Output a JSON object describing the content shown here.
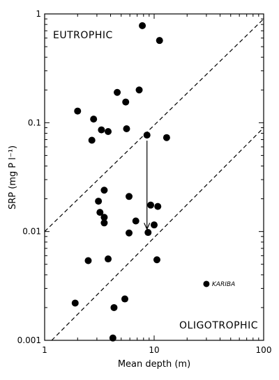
{
  "chart_data": {
    "type": "scatter",
    "title": "",
    "xlabel": "Mean depth (m)",
    "ylabel": "SRP (mg P l⁻¹)",
    "xscale": "log",
    "yscale": "log",
    "xlim": [
      1,
      100
    ],
    "ylim": [
      0.001,
      1
    ],
    "x_ticks": [
      1,
      10,
      100
    ],
    "x_tick_labels": [
      "1",
      "10",
      "100"
    ],
    "y_ticks": [
      0.001,
      0.01,
      0.1,
      1
    ],
    "y_tick_labels": [
      "0.001",
      "0.01",
      "0.1",
      "1"
    ],
    "grid": false,
    "points": [
      {
        "x": 7.8,
        "y": 0.78
      },
      {
        "x": 11.2,
        "y": 0.57
      },
      {
        "x": 4.6,
        "y": 0.19
      },
      {
        "x": 7.3,
        "y": 0.2
      },
      {
        "x": 5.5,
        "y": 0.155
      },
      {
        "x": 2.0,
        "y": 0.128
      },
      {
        "x": 2.8,
        "y": 0.108
      },
      {
        "x": 3.3,
        "y": 0.086
      },
      {
        "x": 3.8,
        "y": 0.083
      },
      {
        "x": 5.6,
        "y": 0.088
      },
      {
        "x": 8.6,
        "y": 0.077
      },
      {
        "x": 2.7,
        "y": 0.069
      },
      {
        "x": 13.0,
        "y": 0.073
      },
      {
        "x": 3.5,
        "y": 0.024
      },
      {
        "x": 5.9,
        "y": 0.021
      },
      {
        "x": 3.1,
        "y": 0.019
      },
      {
        "x": 9.3,
        "y": 0.0175
      },
      {
        "x": 10.8,
        "y": 0.017
      },
      {
        "x": 3.2,
        "y": 0.015
      },
      {
        "x": 3.5,
        "y": 0.0135
      },
      {
        "x": 3.5,
        "y": 0.012
      },
      {
        "x": 6.8,
        "y": 0.0125
      },
      {
        "x": 10.0,
        "y": 0.0115
      },
      {
        "x": 5.9,
        "y": 0.0097
      },
      {
        "x": 8.8,
        "y": 0.0098
      },
      {
        "x": 2.5,
        "y": 0.0054
      },
      {
        "x": 3.8,
        "y": 0.0056
      },
      {
        "x": 10.6,
        "y": 0.0055
      },
      {
        "x": 1.9,
        "y": 0.0022
      },
      {
        "x": 5.4,
        "y": 0.0024
      },
      {
        "x": 4.3,
        "y": 0.002
      },
      {
        "x": 4.2,
        "y": 0.00105
      }
    ],
    "labeled_points": [
      {
        "x": 30,
        "y": 0.0033,
        "label": "KARIBA"
      }
    ],
    "reference_lines": [
      {
        "style": "dashed",
        "from": {
          "x": 1,
          "y": 0.01
        },
        "to": {
          "x": 100,
          "y": 0.9
        }
      },
      {
        "style": "dashed",
        "from": {
          "x": 1.16,
          "y": 0.001
        },
        "to": {
          "x": 100,
          "y": 0.09
        }
      }
    ],
    "arrow": {
      "from": {
        "x": 8.6,
        "y": 0.077
      },
      "to": {
        "x": 8.6,
        "y": 0.0105
      }
    },
    "annotations": {
      "upper_region": "EUTROPHIC",
      "lower_region": "OLIGOTROPHIC"
    }
  }
}
